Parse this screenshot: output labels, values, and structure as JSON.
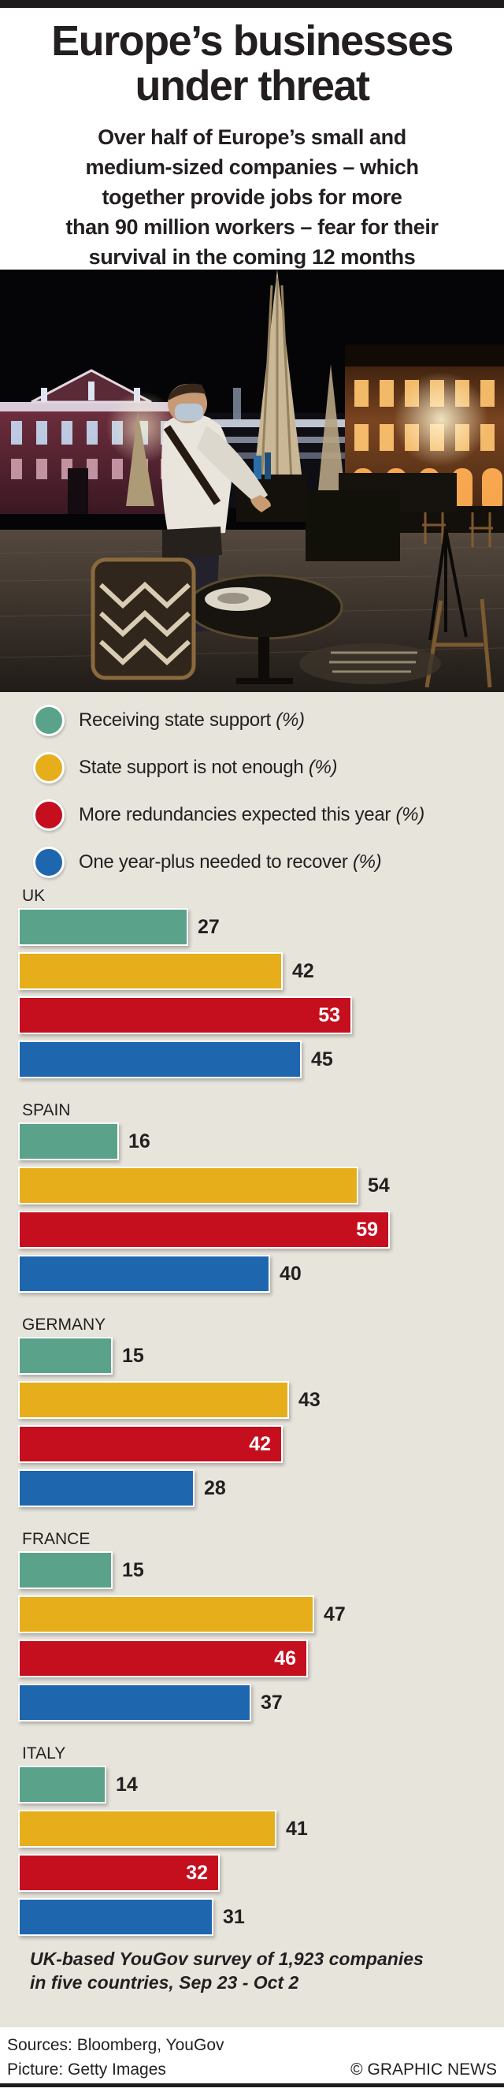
{
  "header": {
    "title_line1": "Europe’s businesses",
    "title_line2": "under threat",
    "subtitle": [
      "Over half of Europe’s small and",
      "medium-sized companies – which",
      "together provide jobs for more",
      "than 90 million workers – fear for their",
      "survival in the coming 12 months"
    ]
  },
  "colors": {
    "background_panel": "#e7e4dc",
    "text": "#231f20",
    "green": "#5aa38a",
    "yellow": "#e7ae1b",
    "red": "#c50f1e",
    "blue": "#1e67af"
  },
  "chart_data": {
    "type": "bar",
    "orientation": "horizontal",
    "unit": "%",
    "xlim": [
      0,
      62
    ],
    "grid": false,
    "legend_position": "top",
    "series": [
      {
        "name": "Receiving state support",
        "suffix": "(%)",
        "color": "#5aa38a",
        "label_inside": false
      },
      {
        "name": "State support is not enough",
        "suffix": "(%)",
        "color": "#e7ae1b",
        "label_inside": false
      },
      {
        "name": "More redundancies expected this year",
        "suffix": "(%)",
        "color": "#c50f1e",
        "label_inside": true
      },
      {
        "name": "One year-plus needed to recover",
        "suffix": "(%)",
        "color": "#1e67af",
        "label_inside": false
      }
    ],
    "countries": [
      {
        "name": "UK",
        "values": [
          27,
          42,
          53,
          45
        ]
      },
      {
        "name": "SPAIN",
        "values": [
          16,
          54,
          59,
          40
        ]
      },
      {
        "name": "GERMANY",
        "values": [
          15,
          43,
          42,
          28
        ]
      },
      {
        "name": "FRANCE",
        "values": [
          15,
          47,
          46,
          37
        ]
      },
      {
        "name": "ITALY",
        "values": [
          14,
          41,
          32,
          31
        ]
      }
    ]
  },
  "footnote": {
    "line1": "UK-based YouGov survey of 1,923 companies",
    "line2": "in five countries, Sep 23 - Oct 2"
  },
  "footer": {
    "sources": "Sources: Bloomberg, YouGov",
    "picture": "Picture: Getty Images",
    "credit": "© GRAPHIC NEWS"
  }
}
